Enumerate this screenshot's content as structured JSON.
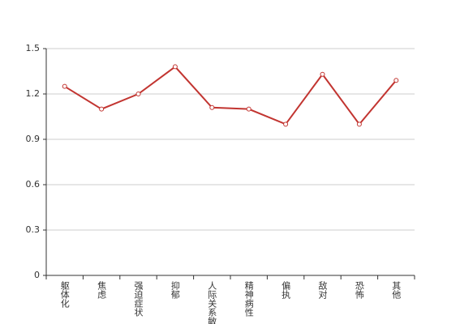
{
  "chart_data": {
    "type": "line",
    "categories": [
      "躯体化",
      "焦虑",
      "强迫症状",
      "抑郁",
      "人际关系敏感",
      "精神病性",
      "偏执",
      "敌对",
      "恐怖",
      "其他"
    ],
    "values": [
      1.25,
      1.1,
      1.2,
      1.38,
      1.11,
      1.1,
      1.0,
      1.33,
      1.0,
      1.29
    ],
    "color": "#c23531",
    "ylim": [
      0,
      1.5
    ],
    "yticks": [
      0,
      0.3,
      0.6,
      0.9,
      1.2,
      1.5
    ],
    "grid": true
  }
}
